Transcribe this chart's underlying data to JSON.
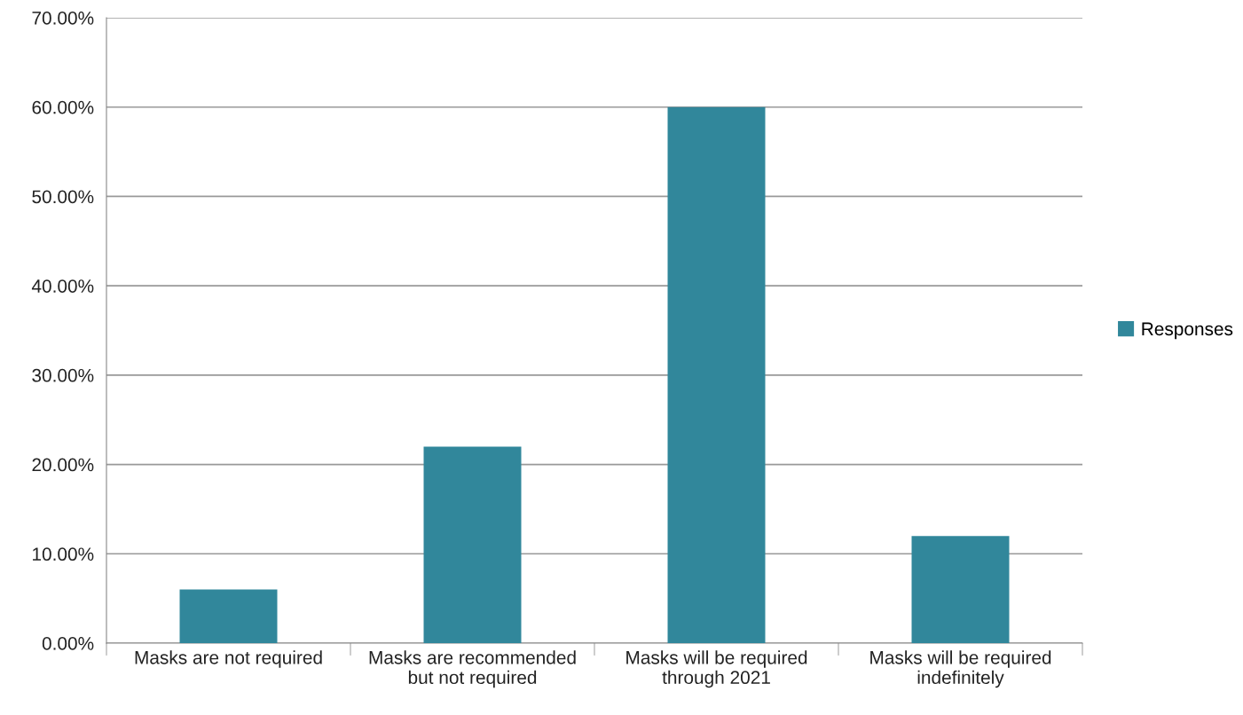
{
  "chart_data": {
    "type": "bar",
    "categories": [
      "Masks are not required",
      "Masks are recommended\nbut not required",
      "Masks will be required\nthrough 2021",
      "Masks will be required\nindefinitely"
    ],
    "series": [
      {
        "name": "Responses",
        "color": "#31879b",
        "values": [
          6,
          22,
          60,
          12
        ]
      }
    ],
    "ylim": [
      0,
      70
    ],
    "yticks": [
      {
        "value": 0,
        "label": "0.00%"
      },
      {
        "value": 10,
        "label": "10.00%"
      },
      {
        "value": 20,
        "label": "20.00%"
      },
      {
        "value": 30,
        "label": "30.00%"
      },
      {
        "value": 40,
        "label": "40.00%"
      },
      {
        "value": 50,
        "label": "50.00%"
      },
      {
        "value": 60,
        "label": "60.00%"
      },
      {
        "value": 70,
        "label": "70.00%"
      }
    ],
    "grid": "y",
    "legend": "right"
  }
}
